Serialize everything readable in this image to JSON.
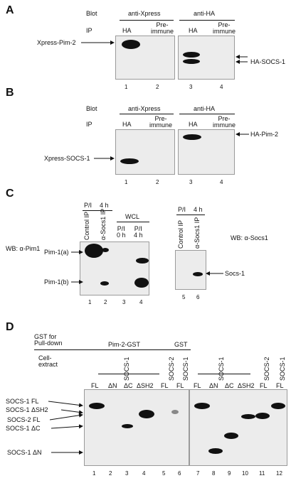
{
  "panel_a": {
    "label": "A",
    "blot_label": "Blot",
    "ip_label": "IP",
    "anti_xpress": "anti-Xpress",
    "anti_ha": "anti-HA",
    "ha_1": "HA",
    "preimmune_1a": "Pre-",
    "preimmune_1b": "immune",
    "ha_2": "HA",
    "preimmune_2a": "Pre-",
    "preimmune_2b": "immune",
    "left_marker": "Xpress-Pim-2",
    "right_marker": "HA-SOCS-1",
    "lanes": [
      "1",
      "2",
      "3",
      "4"
    ]
  },
  "panel_b": {
    "label": "B",
    "blot_label": "Blot",
    "ip_label": "IP",
    "anti_xpress": "anti-Xpress",
    "anti_ha": "anti-HA",
    "ha_1": "HA",
    "preimmune_1a": "Pre-",
    "preimmune_1b": "immune",
    "ha_2": "HA",
    "preimmune_2a": "Pre-",
    "preimmune_2b": "immune",
    "left_marker": "Xpress-SOCS-1",
    "right_marker": "HA-Pim-2",
    "lanes": [
      "1",
      "2",
      "3",
      "4"
    ]
  },
  "panel_c": {
    "label": "C",
    "wb_left": "WB: α-Pim1",
    "wb_right": "WB: α-Socs1",
    "pi_left": "P/I",
    "time_left": "4 h",
    "control_ip": "Control IP",
    "socs1_ip": "α-Socs1 IP",
    "wcl": "WCL",
    "pi_0h_a": "P/I",
    "pi_0h_b": "0 h",
    "pi_4h_a": "P/I",
    "pi_4h_b": "4 h",
    "pim1a": "Pim-1(a)",
    "pim1b": "Pim-1(b)",
    "pi_right": "P/I",
    "time_right": "4 h",
    "control_ip_r": "Control IP",
    "socs1_ip_r": "α-Socs1 IP",
    "socs1_marker": "Socs-1",
    "lanes_left": [
      "1",
      "2",
      "3",
      "4"
    ],
    "lanes_right": [
      "5",
      "6"
    ]
  },
  "panel_d": {
    "label": "D",
    "gst_for_a": "GST for",
    "gst_for_b": "Pull-down",
    "pim2_gst": "Pim-2-GST",
    "gst": "GST",
    "cell_a": "Cell-",
    "cell_b": "extract",
    "socs1_a": "SOCS-1",
    "socs2_a": "SOCS-2",
    "socs1_b": "SOCS-1",
    "socs1_c": "SOCS-1",
    "socs2_c": "SOCS-2",
    "socs1_d": "SOCS-1",
    "lane_labels_left": [
      "FL",
      "ΔN",
      "ΔC",
      "ΔSH2",
      "FL",
      "FL"
    ],
    "lane_labels_right": [
      "FL",
      "ΔN",
      "ΔC",
      "ΔSH2",
      "FL",
      "FL"
    ],
    "markers": [
      "SOCS-1 FL",
      "SOCS-1 ΔSH2",
      "SOCS-2 FL",
      "SOCS-1 ΔC",
      "SOCS-1 ΔN"
    ],
    "lanes": [
      "1",
      "2",
      "3",
      "4",
      "5",
      "6",
      "7",
      "8",
      "9",
      "10",
      "11",
      "12"
    ]
  }
}
